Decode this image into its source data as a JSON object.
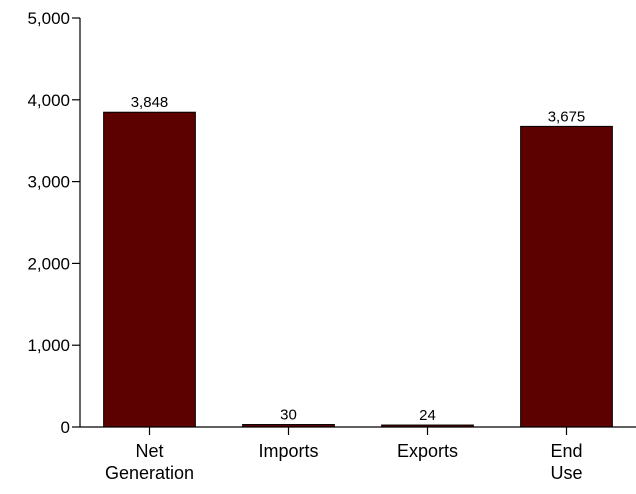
{
  "chart_data": {
    "type": "bar",
    "title": "",
    "xlabel": "",
    "ylabel": "",
    "categories": [
      [
        "Net",
        "Generation"
      ],
      [
        "Imports"
      ],
      [
        "Exports"
      ],
      [
        "End",
        "Use"
      ]
    ],
    "values": [
      3848,
      30,
      24,
      3675
    ],
    "value_labels": [
      "3,848",
      "30",
      "24",
      "3,675"
    ],
    "ylim": [
      0,
      5000
    ],
    "yticks": [
      0,
      1000,
      2000,
      3000,
      4000,
      5000
    ],
    "ytick_labels": [
      "0",
      "1,000",
      "2,000",
      "3,000",
      "4,000",
      "5,000"
    ],
    "grid": false,
    "legend": "none",
    "bar_color": "#5c0000",
    "bar_edge_color": "#000000"
  }
}
